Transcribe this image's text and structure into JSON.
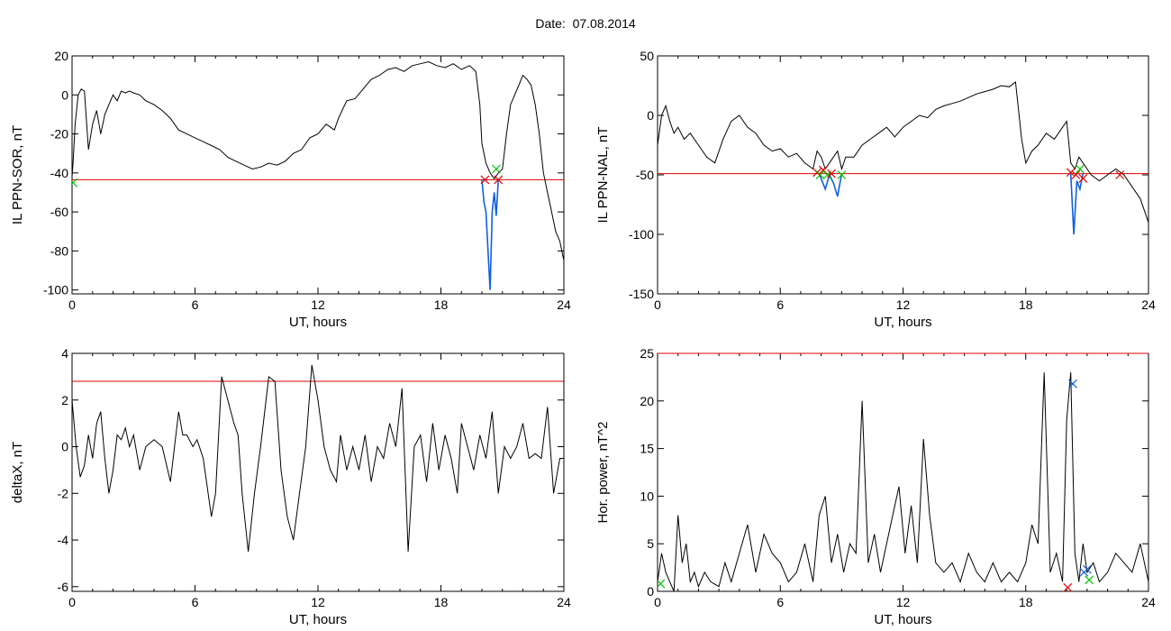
{
  "page": {
    "date_label": "Date:",
    "date_value": "07.08.2014"
  },
  "chart_data": [
    {
      "id": "ppn-sor",
      "type": "line",
      "title": "",
      "xlabel": "UT, hours",
      "ylabel": "IL PPN-SOR, nT",
      "xlim": [
        0,
        24
      ],
      "ylim": [
        -102,
        20
      ],
      "xticks": [
        0,
        6,
        12,
        18,
        24
      ],
      "yticks": [
        20,
        0,
        -20,
        -40,
        -60,
        -80,
        -100
      ],
      "threshold": {
        "y": -43.5,
        "color": "#e00000"
      },
      "series": [
        {
          "color": "#000000",
          "x": [
            0,
            0.05,
            0.15,
            0.3,
            0.45,
            0.6,
            0.8,
            1.0,
            1.2,
            1.4,
            1.6,
            1.8,
            2.0,
            2.2,
            2.4,
            2.6,
            2.8,
            3.0,
            3.3,
            3.6,
            4.0,
            4.4,
            4.8,
            5.2,
            5.6,
            6.0,
            6.4,
            6.8,
            7.2,
            7.6,
            8.0,
            8.4,
            8.8,
            9.2,
            9.6,
            10.0,
            10.4,
            10.8,
            11.2,
            11.6,
            12.0,
            12.4,
            12.8,
            13.0,
            13.4,
            13.8,
            14.2,
            14.6,
            15.0,
            15.4,
            15.8,
            16.2,
            16.6,
            17.0,
            17.4,
            17.8,
            18.2,
            18.6,
            19.0,
            19.4,
            19.7,
            19.9,
            20.0,
            20.2,
            20.4,
            20.6,
            20.8,
            21.0,
            21.2,
            21.4,
            21.6,
            21.8,
            22.0,
            22.2,
            22.4,
            22.6,
            22.8,
            23.0,
            23.2,
            23.4,
            23.6,
            23.8,
            24.0
          ],
          "y": [
            -42,
            -35,
            -15,
            0,
            3,
            2,
            -28,
            -15,
            -8,
            -20,
            -10,
            -5,
            0,
            -3,
            2,
            1,
            2,
            1,
            0,
            -3,
            -5,
            -8,
            -12,
            -18,
            -20,
            -22,
            -24,
            -26,
            -28,
            -32,
            -34,
            -36,
            -38,
            -37,
            -35,
            -36,
            -34,
            -30,
            -28,
            -22,
            -20,
            -15,
            -18,
            -12,
            -3,
            -2,
            3,
            8,
            10,
            13,
            14,
            12,
            15,
            16,
            17,
            15,
            14,
            16,
            13,
            15,
            12,
            -5,
            -25,
            -35,
            -40,
            -43,
            -40,
            -38,
            -20,
            -5,
            0,
            5,
            10,
            8,
            5,
            -5,
            -20,
            -40,
            -50,
            -60,
            -70,
            -75,
            -85
          ]
        },
        {
          "color": "#1060e0",
          "x": [
            20.0,
            20.1,
            20.2,
            20.3,
            20.4,
            20.5,
            20.6,
            20.7,
            20.8
          ],
          "y": [
            -43.5,
            -55,
            -60,
            -80,
            -100,
            -60,
            -50,
            -62,
            -43.5
          ]
        }
      ],
      "markers": [
        {
          "x": 20.15,
          "y": -43.5,
          "color": "#e00000"
        },
        {
          "x": 20.7,
          "y": -38,
          "color": "#00c000"
        },
        {
          "x": 20.8,
          "y": -43.5,
          "color": "#e00000"
        },
        {
          "x": 0.05,
          "y": -45,
          "color": "#00c000"
        }
      ]
    },
    {
      "id": "ppn-nal",
      "type": "line",
      "title": "",
      "xlabel": "UT, hours",
      "ylabel": "IL PPN-NAL, nT",
      "xlim": [
        0,
        24
      ],
      "ylim": [
        -150,
        50
      ],
      "xticks": [
        0,
        6,
        12,
        18,
        24
      ],
      "yticks": [
        50,
        0,
        -50,
        -100,
        -150
      ],
      "threshold": {
        "y": -49,
        "color": "#e00000"
      },
      "series": [
        {
          "color": "#000000",
          "x": [
            0,
            0.2,
            0.4,
            0.6,
            0.8,
            1.0,
            1.3,
            1.6,
            2.0,
            2.4,
            2.8,
            3.2,
            3.6,
            4.0,
            4.4,
            4.8,
            5.2,
            5.6,
            6.0,
            6.4,
            6.8,
            7.2,
            7.6,
            7.8,
            8.0,
            8.2,
            8.4,
            8.6,
            8.8,
            9.0,
            9.2,
            9.6,
            10.0,
            10.4,
            10.8,
            11.2,
            11.6,
            12.0,
            12.4,
            12.8,
            13.2,
            13.6,
            14.0,
            14.4,
            14.8,
            15.2,
            15.6,
            16.0,
            16.4,
            16.8,
            17.2,
            17.5,
            17.8,
            18.0,
            18.3,
            18.6,
            19.0,
            19.4,
            19.8,
            20.0,
            20.2,
            20.4,
            20.6,
            20.8,
            21.0,
            21.2,
            21.6,
            22.0,
            22.4,
            22.8,
            23.2,
            23.6,
            24.0
          ],
          "y": [
            -25,
            0,
            8,
            -5,
            -15,
            -10,
            -20,
            -15,
            -25,
            -35,
            -40,
            -20,
            -5,
            0,
            -10,
            -15,
            -25,
            -30,
            -28,
            -35,
            -32,
            -40,
            -45,
            -30,
            -35,
            -45,
            -40,
            -35,
            -30,
            -45,
            -35,
            -35,
            -25,
            -20,
            -15,
            -10,
            -18,
            -10,
            -5,
            0,
            -2,
            5,
            8,
            10,
            12,
            15,
            18,
            20,
            22,
            25,
            24,
            28,
            -20,
            -40,
            -30,
            -25,
            -15,
            -20,
            -10,
            -5,
            -40,
            -45,
            -35,
            -40,
            -45,
            -50,
            -55,
            -50,
            -45,
            -50,
            -60,
            -70,
            -90
          ]
        },
        {
          "color": "#1060e0",
          "x": [
            7.9,
            8.2,
            8.4,
            8.6,
            8.8,
            9.0
          ],
          "y": [
            -49,
            -62,
            -50,
            -57,
            -68,
            -49
          ]
        },
        {
          "color": "#1060e0",
          "x": [
            20.2,
            20.35,
            20.5,
            20.65,
            20.8
          ],
          "y": [
            -49,
            -100,
            -55,
            -62,
            -49
          ]
        }
      ],
      "markers": [
        {
          "x": 7.8,
          "y": -48,
          "color": "#e00000"
        },
        {
          "x": 7.95,
          "y": -50,
          "color": "#00c000"
        },
        {
          "x": 8.1,
          "y": -46,
          "color": "#e00000"
        },
        {
          "x": 8.3,
          "y": -50,
          "color": "#00c000"
        },
        {
          "x": 8.5,
          "y": -49,
          "color": "#e00000"
        },
        {
          "x": 9.0,
          "y": -50,
          "color": "#00c000"
        },
        {
          "x": 20.2,
          "y": -48,
          "color": "#e00000"
        },
        {
          "x": 20.45,
          "y": -50,
          "color": "#e00000"
        },
        {
          "x": 20.65,
          "y": -45,
          "color": "#00c000"
        },
        {
          "x": 20.8,
          "y": -53,
          "color": "#e00000"
        },
        {
          "x": 22.6,
          "y": -50,
          "color": "#e00000"
        }
      ]
    },
    {
      "id": "deltax",
      "type": "line",
      "title": "",
      "xlabel": "UT, hours",
      "ylabel": "deltaX, nT",
      "xlim": [
        0,
        24
      ],
      "ylim": [
        -6.2,
        4
      ],
      "xticks": [
        0,
        6,
        12,
        18,
        24
      ],
      "yticks": [
        4,
        2,
        0,
        -2,
        -4,
        -6
      ],
      "threshold": {
        "y": 2.8,
        "color": "#e00000"
      },
      "series": [
        {
          "color": "#000000",
          "x": [
            0,
            0.2,
            0.4,
            0.6,
            0.8,
            1.0,
            1.2,
            1.4,
            1.6,
            1.8,
            2.0,
            2.2,
            2.4,
            2.6,
            2.8,
            3.0,
            3.3,
            3.6,
            4.0,
            4.4,
            4.8,
            5.2,
            5.4,
            5.6,
            5.9,
            6.1,
            6.4,
            6.8,
            7.0,
            7.3,
            7.6,
            7.9,
            8.1,
            8.3,
            8.6,
            8.9,
            9.2,
            9.6,
            9.9,
            10.2,
            10.5,
            10.8,
            11.1,
            11.4,
            11.7,
            12.0,
            12.3,
            12.6,
            12.9,
            13.1,
            13.4,
            13.7,
            14.0,
            14.3,
            14.6,
            14.9,
            15.2,
            15.5,
            15.8,
            16.1,
            16.4,
            16.7,
            17.0,
            17.3,
            17.6,
            17.9,
            18.2,
            18.5,
            18.8,
            19.0,
            19.3,
            19.6,
            19.9,
            20.2,
            20.5,
            20.8,
            21.1,
            21.4,
            21.7,
            22.0,
            22.3,
            22.6,
            22.9,
            23.2,
            23.5,
            23.8,
            24.0
          ],
          "y": [
            2,
            0,
            -1.3,
            -0.8,
            0.5,
            -0.5,
            1,
            1.5,
            -0.5,
            -2,
            -1,
            0.5,
            0.3,
            0.8,
            0,
            0.5,
            -1,
            0,
            0.3,
            0,
            -1.5,
            1.5,
            0.5,
            0.5,
            0,
            0.3,
            -0.5,
            -3,
            -2,
            3,
            2,
            1,
            0.5,
            -2,
            -4.5,
            -2,
            0,
            3,
            2.8,
            -1,
            -3,
            -4,
            -2,
            0,
            3.5,
            2,
            0,
            -1,
            -1.5,
            0.5,
            -1,
            0,
            -1,
            0.5,
            -1.5,
            0,
            -0.5,
            1,
            0,
            2.5,
            -4.5,
            0,
            0.5,
            -1.5,
            1,
            -1,
            0.5,
            -0.5,
            -2,
            1,
            0,
            -1,
            0.5,
            -0.5,
            1.5,
            -2,
            0,
            -0.5,
            0,
            1,
            -0.5,
            -0.3,
            -0.5,
            1.7,
            -2,
            -0.5,
            -0.5
          ]
        }
      ],
      "markers": []
    },
    {
      "id": "hor-power",
      "type": "line",
      "title": "",
      "xlabel": "UT, hours",
      "ylabel": "Hor. power, nT^2",
      "xlim": [
        0,
        24
      ],
      "ylim": [
        0,
        25
      ],
      "xticks": [
        0,
        6,
        12,
        18,
        24
      ],
      "yticks": [
        25,
        20,
        15,
        10,
        5,
        0
      ],
      "threshold": {
        "y": 25,
        "color": "#e00000"
      },
      "series": [
        {
          "color": "#000000",
          "x": [
            0,
            0.2,
            0.4,
            0.6,
            0.8,
            1.0,
            1.2,
            1.4,
            1.6,
            1.8,
            2.0,
            2.3,
            2.6,
            3.0,
            3.3,
            3.6,
            4.0,
            4.4,
            4.8,
            5.2,
            5.6,
            6.0,
            6.4,
            6.8,
            7.2,
            7.6,
            7.9,
            8.2,
            8.5,
            8.8,
            9.1,
            9.4,
            9.7,
            10.0,
            10.3,
            10.6,
            10.9,
            11.2,
            11.5,
            11.8,
            12.1,
            12.4,
            12.7,
            13.0,
            13.3,
            13.6,
            14.0,
            14.4,
            14.8,
            15.2,
            15.6,
            16.0,
            16.4,
            16.8,
            17.2,
            17.6,
            18.0,
            18.3,
            18.6,
            18.9,
            19.2,
            19.5,
            19.8,
            20.0,
            20.2,
            20.4,
            20.6,
            20.8,
            21.0,
            21.3,
            21.6,
            22.0,
            22.4,
            22.8,
            23.2,
            23.6,
            24.0
          ],
          "y": [
            1,
            4,
            2,
            1,
            0,
            8,
            3,
            5,
            1,
            2,
            0.5,
            2,
            1,
            0.5,
            3,
            1,
            4,
            7,
            2,
            6,
            4,
            3,
            1,
            2,
            5,
            1,
            8,
            10,
            3,
            6,
            2,
            5,
            4,
            20,
            3,
            6,
            2,
            5,
            8,
            11,
            4,
            9,
            3,
            16,
            8,
            3,
            2,
            3,
            1,
            4,
            2,
            1,
            3,
            1,
            2,
            1,
            3,
            7,
            5,
            23,
            2,
            4,
            1,
            18,
            23,
            4,
            1,
            5,
            2,
            3,
            1,
            2,
            4,
            3,
            2,
            5,
            1
          ]
        }
      ],
      "markers": [
        {
          "x": 0.15,
          "y": 0.8,
          "color": "#00c000"
        },
        {
          "x": 20.05,
          "y": 0.4,
          "color": "#e00000"
        },
        {
          "x": 20.3,
          "y": 21.8,
          "color": "#1060e0"
        },
        {
          "x": 20.85,
          "y": 2,
          "color": "#1060e0"
        },
        {
          "x": 21.0,
          "y": 2.3,
          "color": "#1060e0"
        },
        {
          "x": 21.1,
          "y": 1.2,
          "color": "#00c000"
        }
      ]
    }
  ]
}
